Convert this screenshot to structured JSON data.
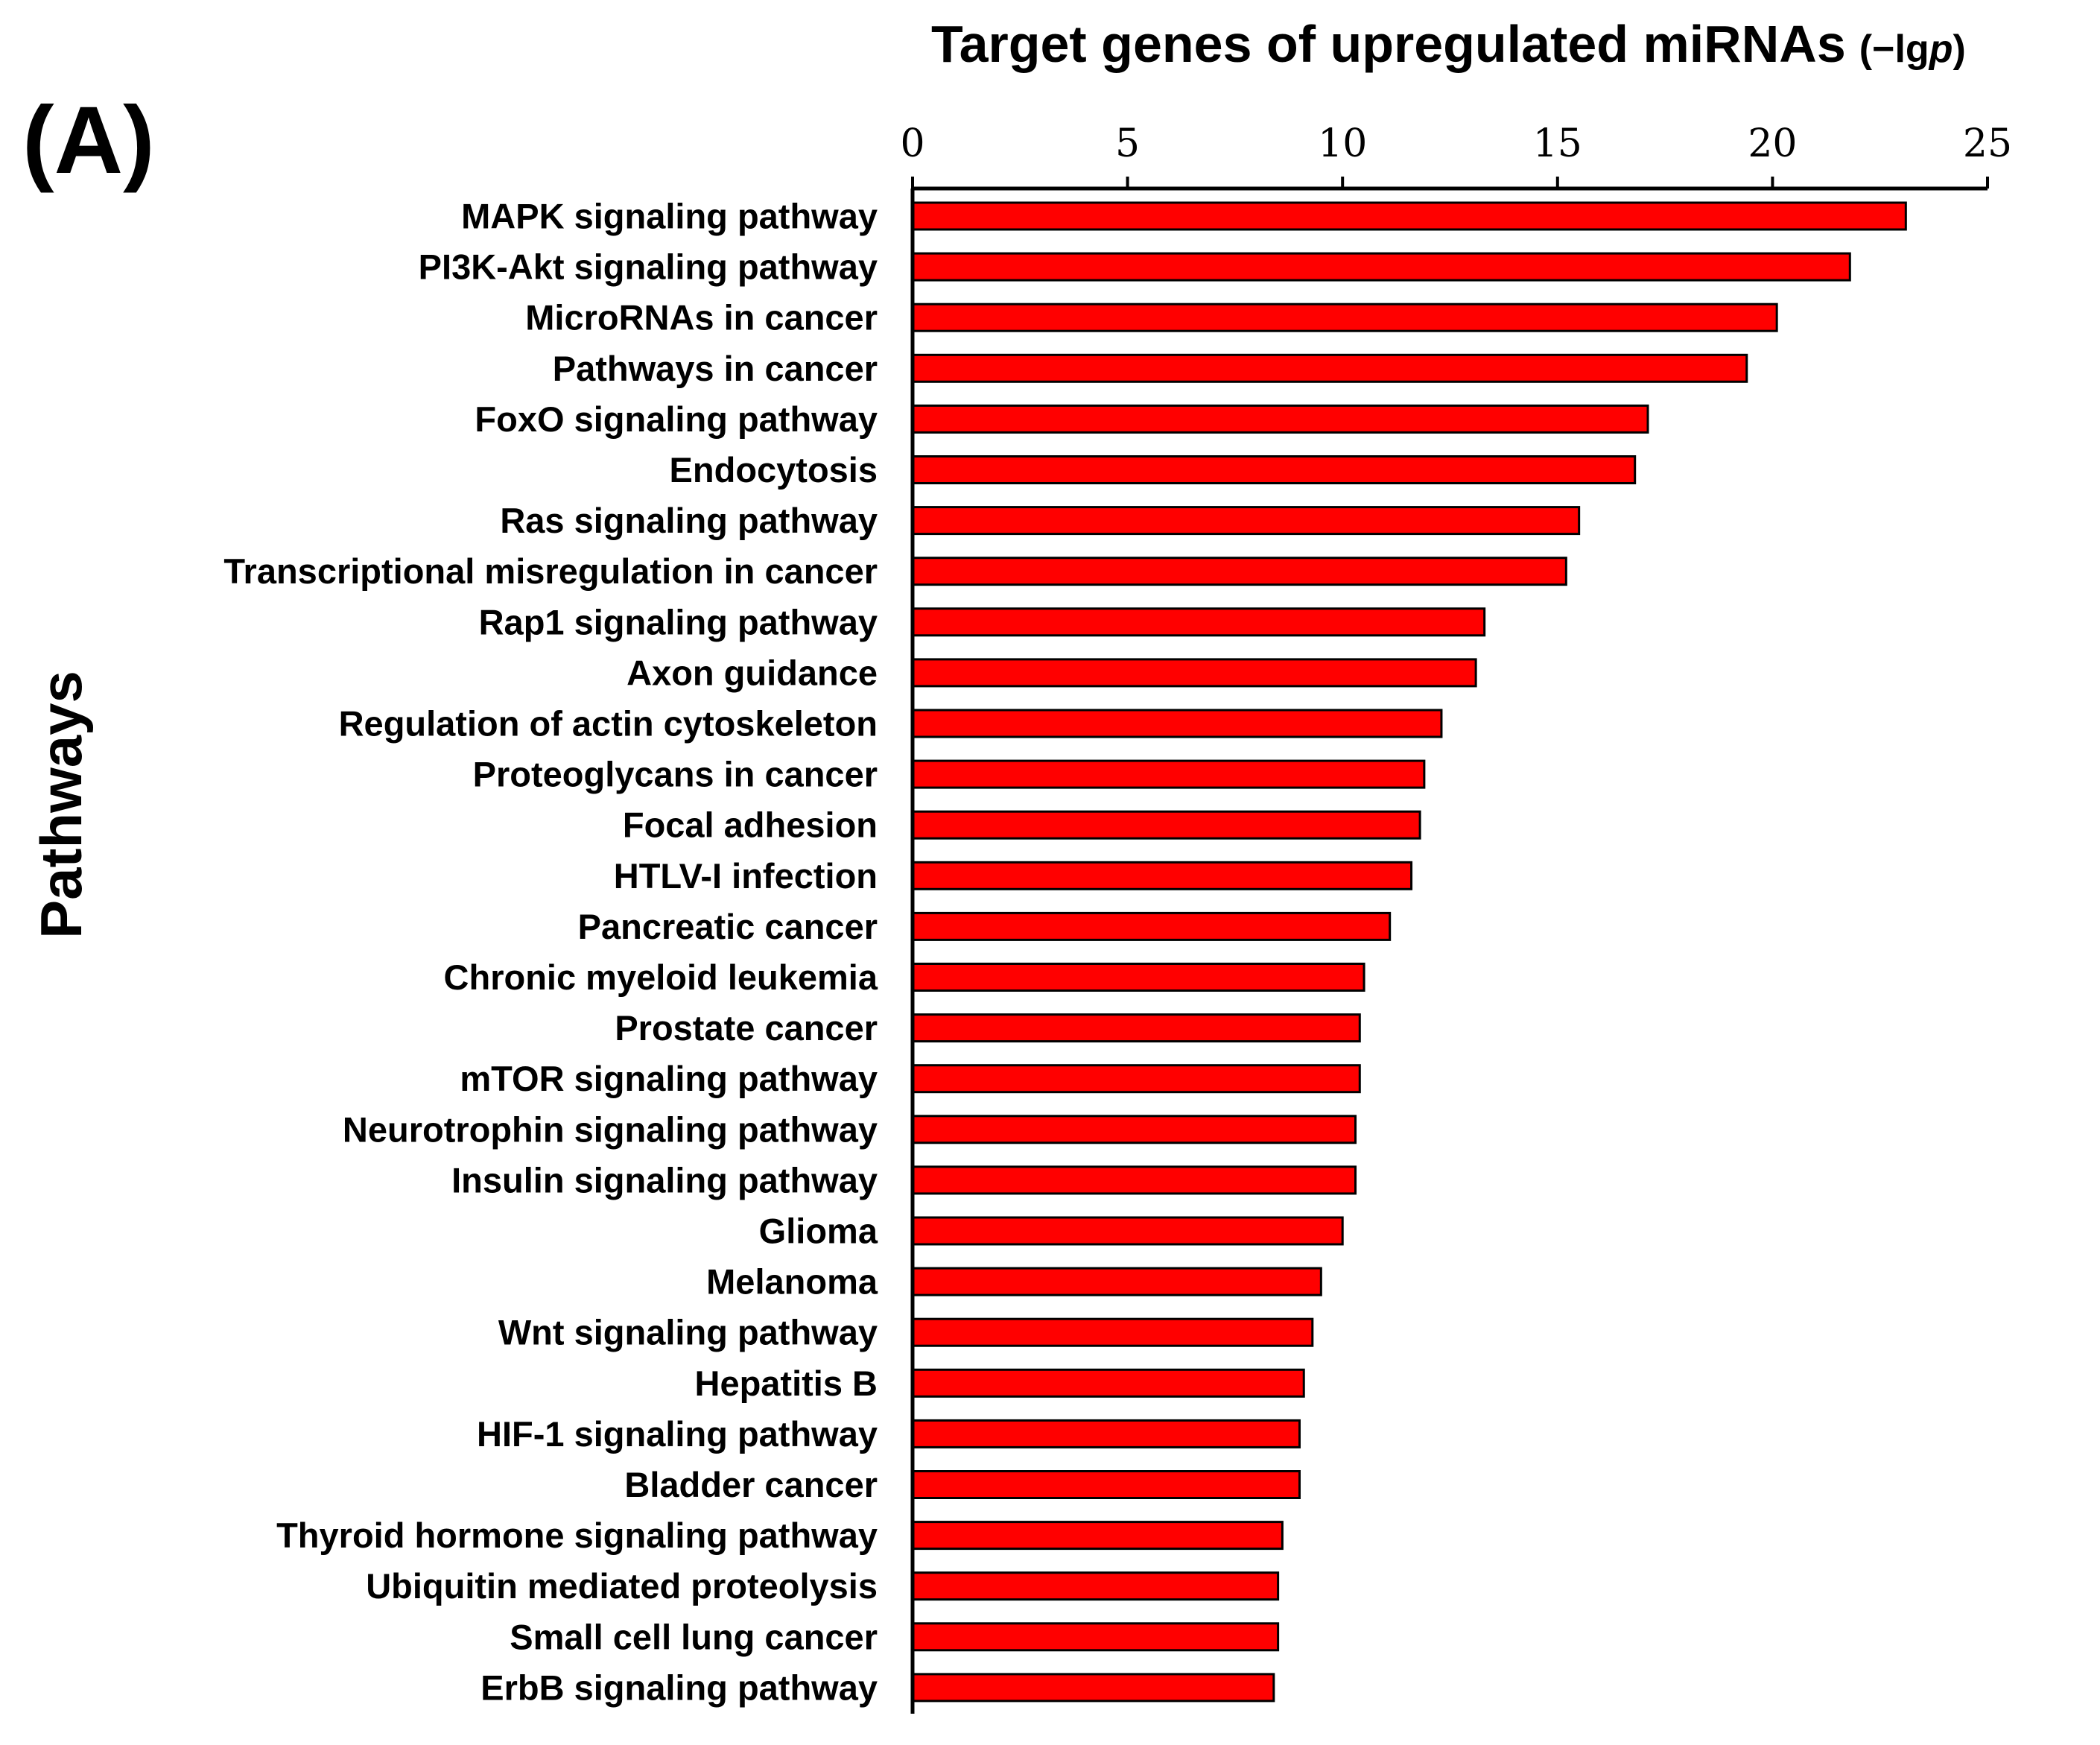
{
  "panel_label": "(A)",
  "chart_data": {
    "type": "bar",
    "orientation": "horizontal",
    "title": "Target genes of upregulated miRNAs",
    "xlabel": "(−lgp)",
    "xlabel_prefix": "(−lg",
    "xlabel_italic": "p",
    "xlabel_suffix": ")",
    "ylabel": "Pathways",
    "xlim": [
      0,
      25
    ],
    "xticks": [
      0,
      5,
      10,
      15,
      20,
      25
    ],
    "categories": [
      "MAPK signaling pathway",
      "PI3K-Akt signaling pathway",
      "MicroRNAs in cancer",
      "Pathways in cancer",
      "FoxO signaling pathway",
      "Endocytosis",
      "Ras signaling pathway",
      "Transcriptional misregulation in cancer",
      "Rap1 signaling pathway",
      "Axon guidance",
      "Regulation of actin cytoskeleton",
      "Proteoglycans in cancer",
      "Focal adhesion",
      "HTLV-I infection",
      "Pancreatic cancer",
      "Chronic myeloid leukemia",
      "Prostate cancer",
      "mTOR signaling pathway",
      "Neurotrophin signaling pathway",
      "Insulin signaling pathway",
      "Glioma",
      "Melanoma",
      "Wnt signaling pathway",
      "Hepatitis B",
      "HIF-1 signaling pathway",
      "Bladder cancer",
      "Thyroid hormone signaling pathway",
      "Ubiquitin mediated proteolysis",
      "Small cell lung cancer",
      "ErbB signaling pathway"
    ],
    "values": [
      23.1,
      21.8,
      20.1,
      19.4,
      17.1,
      16.8,
      15.5,
      15.2,
      13.3,
      13.1,
      12.3,
      11.9,
      11.8,
      11.6,
      11.1,
      10.5,
      10.4,
      10.4,
      10.3,
      10.3,
      10.0,
      9.5,
      9.3,
      9.1,
      9.0,
      9.0,
      8.6,
      8.5,
      8.5,
      8.4
    ],
    "bar_color": "#ff0000",
    "bar_edge_color": "#000000",
    "grid": false,
    "legend": "none"
  }
}
